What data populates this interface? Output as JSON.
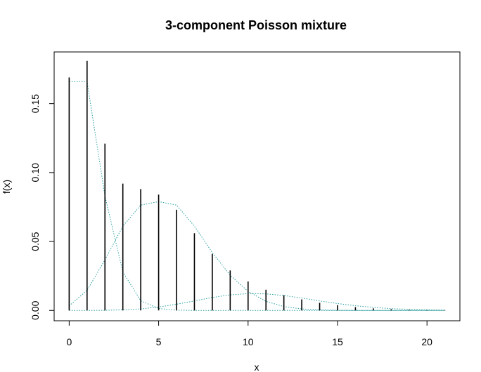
{
  "chart_data": {
    "type": "line",
    "title": "3-component Poisson mixture",
    "xlabel": "x",
    "ylabel": "f(x)",
    "xlim": [
      -0.84,
      21.84
    ],
    "ylim": [
      -0.0075,
      0.1875
    ],
    "x_ticks": [
      "0",
      "5",
      "10",
      "15",
      "20"
    ],
    "y_ticks": [
      "0.00",
      "0.05",
      "0.10",
      "0.15"
    ],
    "grid": false,
    "legend": "none",
    "colors": {
      "spikes": "#000000",
      "components": "#2a9d9d"
    },
    "x": [
      0,
      1,
      2,
      3,
      4,
      5,
      6,
      7,
      8,
      9,
      10,
      11,
      12,
      13,
      14,
      15,
      16,
      17,
      18,
      19,
      20,
      21
    ],
    "series": [
      {
        "style": "spikes",
        "values": [
          0.169,
          0.181,
          0.121,
          0.092,
          0.088,
          0.084,
          0.073,
          0.056,
          0.041,
          0.029,
          0.021,
          0.015,
          0.011,
          0.008,
          0.0055,
          0.0038,
          0.0024,
          0.0015,
          0.0009,
          0.0005,
          0.0003,
          0.0002
        ]
      },
      {
        "style": "dotted",
        "values": [
          0.166,
          0.166,
          0.083,
          0.028,
          0.007,
          0.0014,
          0.0002,
          0,
          0,
          0,
          0,
          0,
          0,
          0,
          0,
          0,
          0,
          0,
          0,
          0,
          0,
          0
        ]
      },
      {
        "style": "dotted",
        "values": [
          0.0033,
          0.0146,
          0.0367,
          0.0611,
          0.0764,
          0.0789,
          0.0764,
          0.0611,
          0.042,
          0.0255,
          0.0138,
          0.0066,
          0.0028,
          0.0011,
          0.0004,
          0.0001,
          0,
          0,
          0,
          0,
          0,
          0
        ]
      },
      {
        "style": "dotted",
        "values": [
          0,
          0,
          0.0001,
          0.0004,
          0.0011,
          0.0025,
          0.0045,
          0.0069,
          0.0094,
          0.0113,
          0.0122,
          0.012,
          0.0108,
          0.009,
          0.0069,
          0.005,
          0.0034,
          0.0022,
          0.0013,
          0.0008,
          0.0004,
          0.0002
        ]
      }
    ]
  }
}
